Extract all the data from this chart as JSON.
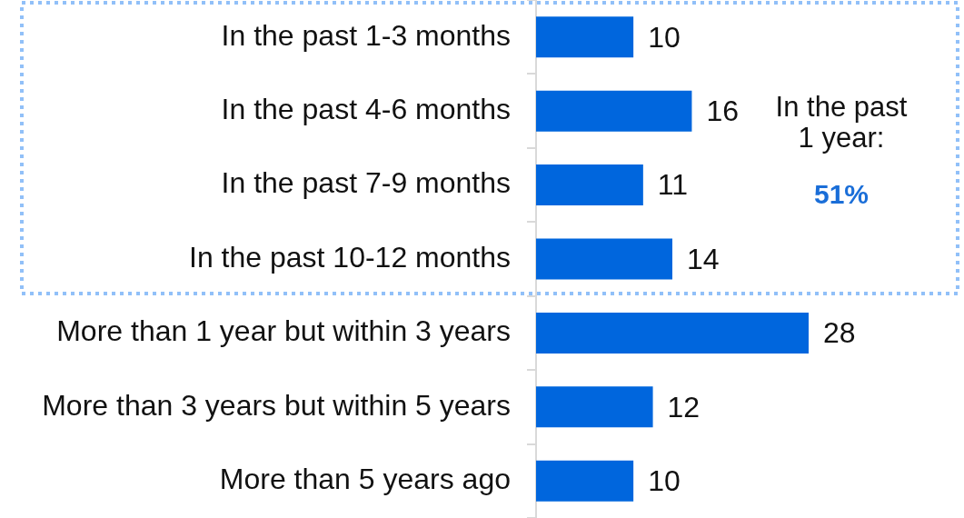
{
  "chart_data": {
    "type": "bar",
    "orientation": "horizontal",
    "categories": [
      "In the past 1-3 months",
      "In the past 4-6 months",
      "In the past 7-9 months",
      "In the past 10-12 months",
      "More than 1 year but within 3 years",
      "More than 3 years but within 5 years",
      "More than 5 years ago"
    ],
    "values": [
      10,
      16,
      11,
      14,
      28,
      12,
      10
    ],
    "color": "#0066dd",
    "tick_labels": "y",
    "data_labels": true,
    "annotations": [
      "In the past 1 year:",
      "51%"
    ]
  }
}
